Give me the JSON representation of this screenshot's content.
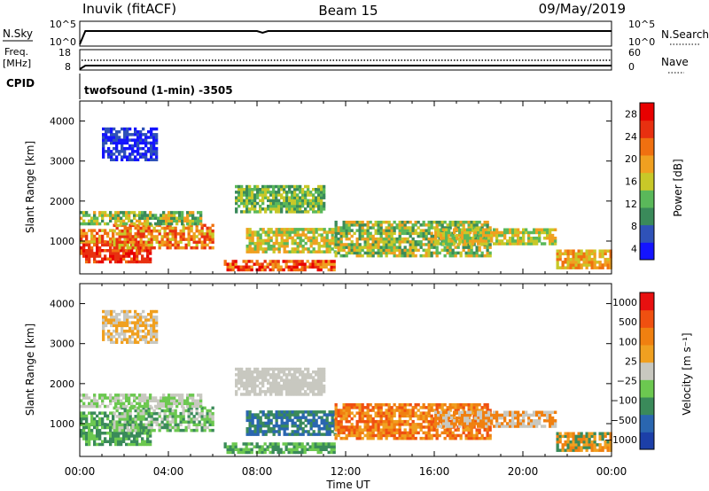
{
  "header": {
    "station": "Inuvik (fitACF)",
    "beam": "Beam 15",
    "date": "09/May/2019"
  },
  "top_panels": {
    "nsky_label": "N.Sky",
    "nsky_ticks": [
      "10^5",
      "10^0"
    ],
    "nsearch_label": "N.Search",
    "nsearch_ticks": [
      "10^5",
      "10^0"
    ],
    "freq_label": "Freq.",
    "freq_unit": "[MHz]",
    "freq_ticks": [
      "18",
      "8"
    ],
    "nave_label": "Nave",
    "nave_ticks": [
      "60",
      "0"
    ],
    "cpid_label": "CPID",
    "cpid_text": "twofsound (1-min) -3505"
  },
  "colors": {
    "power": [
      "#1414ff",
      "#2f52b8",
      "#3a8a5a",
      "#5ab85a",
      "#c8c828",
      "#f0a020",
      "#f07010",
      "#e83010",
      "#e80000"
    ],
    "velocity": [
      "#1c3fa8",
      "#2a66b0",
      "#3a8a5a",
      "#6cc850",
      "#c8c8c0",
      "#f0a020",
      "#f08010",
      "#f05010",
      "#e81010"
    ]
  },
  "chart_data": [
    {
      "type": "heatmap",
      "name": "power",
      "ylabel": "Slant Range [km]",
      "yticks": [
        "4000",
        "3000",
        "2000",
        "1000"
      ],
      "ylim": [
        180,
        4500
      ],
      "xlim": [
        "00:00",
        "24:00"
      ],
      "colorbar_label": "Power [dB]",
      "colorbar_ticks": [
        "28",
        "24",
        "20",
        "16",
        "12",
        "8",
        "4"
      ]
    },
    {
      "type": "heatmap",
      "name": "velocity",
      "ylabel": "Slant Range [km]",
      "yticks": [
        "4000",
        "3000",
        "2000",
        "1000"
      ],
      "ylim": [
        180,
        4500
      ],
      "xlim": [
        "00:00",
        "24:00"
      ],
      "xticks": [
        "00:00",
        "04:00",
        "08:00",
        "12:00",
        "16:00",
        "20:00",
        "00:00"
      ],
      "xlabel": "Time UT",
      "colorbar_label": "Velocity [m s⁻¹]",
      "colorbar_ticks": [
        "1000",
        "500",
        "100",
        "25",
        "−25",
        "−100",
        "−500",
        "−1000"
      ]
    }
  ]
}
